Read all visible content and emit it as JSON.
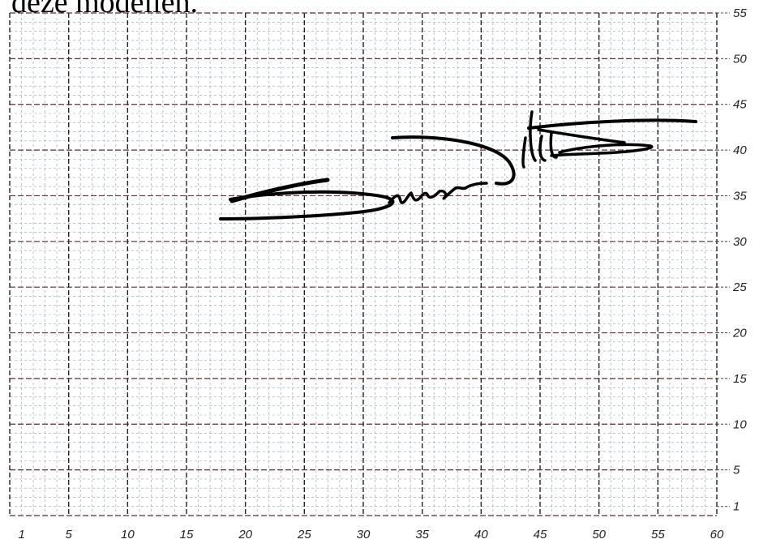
{
  "top_text": "deze modellen.",
  "x_axis_labels": [
    "1",
    "5",
    "10",
    "15",
    "20",
    "25",
    "30",
    "35",
    "40",
    "45",
    "50",
    "55",
    "60"
  ],
  "y_axis_labels": [
    "55",
    "50",
    "45",
    "40",
    "35",
    "30",
    "25",
    "20",
    "15",
    "10",
    "5",
    "1"
  ],
  "colors": {
    "major_gridline": "#5a2e3a",
    "minor_gridline": "#8aa6b8",
    "ink": "#000000"
  }
}
